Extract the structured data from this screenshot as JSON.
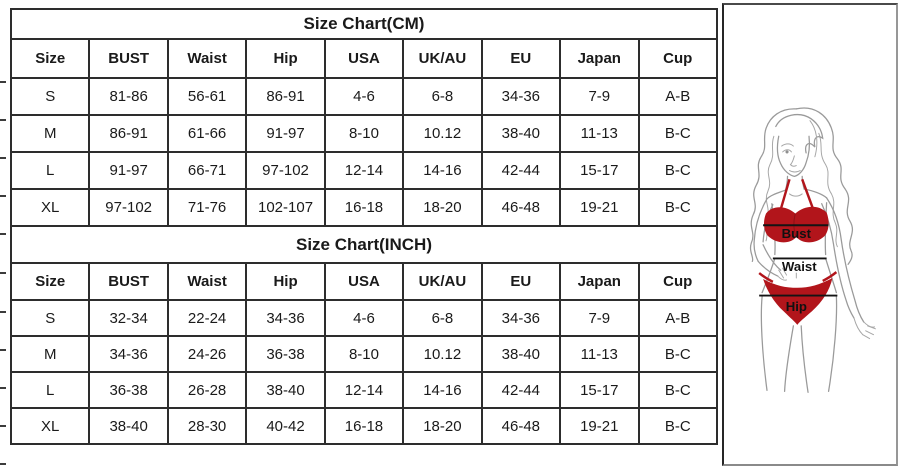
{
  "chart_data": [
    {
      "type": "table",
      "title": "Size Chart(CM)",
      "columns": [
        "Size",
        "BUST",
        "Waist",
        "Hip",
        "USA",
        "UK/AU",
        "EU",
        "Japan",
        "Cup"
      ],
      "rows": [
        [
          "S",
          "81-86",
          "56-61",
          "86-91",
          "4-6",
          "6-8",
          "34-36",
          "7-9",
          "A-B"
        ],
        [
          "M",
          "86-91",
          "61-66",
          "91-97",
          "8-10",
          "10.12",
          "38-40",
          "11-13",
          "B-C"
        ],
        [
          "L",
          "91-97",
          "66-71",
          "97-102",
          "12-14",
          "14-16",
          "42-44",
          "15-17",
          "B-C"
        ],
        [
          "XL",
          "97-102",
          "71-76",
          "102-107",
          "16-18",
          "18-20",
          "46-48",
          "19-21",
          "B-C"
        ]
      ]
    },
    {
      "type": "table",
      "title": "Size Chart(INCH)",
      "columns": [
        "Size",
        "BUST",
        "Waist",
        "Hip",
        "USA",
        "UK/AU",
        "EU",
        "Japan",
        "Cup"
      ],
      "rows": [
        [
          "S",
          "32-34",
          "22-24",
          "34-36",
          "4-6",
          "6-8",
          "34-36",
          "7-9",
          "A-B"
        ],
        [
          "M",
          "34-36",
          "24-26",
          "36-38",
          "8-10",
          "10.12",
          "38-40",
          "11-13",
          "B-C"
        ],
        [
          "L",
          "36-38",
          "26-28",
          "38-40",
          "12-14",
          "14-16",
          "42-44",
          "15-17",
          "B-C"
        ],
        [
          "XL",
          "38-40",
          "28-30",
          "40-42",
          "16-18",
          "18-20",
          "46-48",
          "19-21",
          "B-C"
        ]
      ]
    }
  ],
  "figure": {
    "bust_label": "Bust",
    "waist_label": "Waist",
    "hip_label": "Hip",
    "bikini_color": "#b2151b",
    "bikini_outline_color": "#8d1016",
    "measure_line_color": "#141414",
    "line_art_color": "#9a9a9a"
  }
}
